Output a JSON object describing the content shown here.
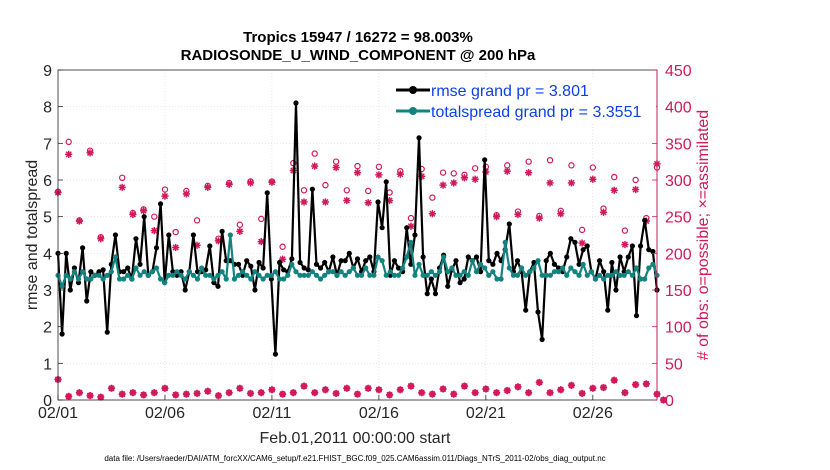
{
  "chart_data": {
    "type": "line",
    "title": "Tropics 15947 / 16272 = 98.003%",
    "subtitle": "RADIOSONDE_U_WIND_COMPONENT @ 200 hPa",
    "xlabel": "Feb.01,2011 00:00:00 start",
    "ylabel": "rmse and totalspread",
    "ylabel_right": "# of obs: o=possible; ×=assimilated",
    "footnote": "data file: /Users/raeder/DAI/ATM_forcXX/CAM6_setup/f.e21.FHIST_BGC.f09_025.CAM6assim.011/Diags_NTrS_2011-02/obs_diag_output.nc",
    "x_ticks": [
      "02/01",
      "02/06",
      "02/11",
      "02/16",
      "02/21",
      "02/26"
    ],
    "x_tick_days": [
      0,
      5,
      10,
      15,
      20,
      25
    ],
    "xlim": [
      0,
      28
    ],
    "ylim": [
      0,
      9
    ],
    "y_ticks": [
      0,
      1,
      2,
      3,
      4,
      5,
      6,
      7,
      8,
      9
    ],
    "ylim_right": [
      0,
      450
    ],
    "y_ticks_right": [
      0,
      50,
      100,
      150,
      200,
      250,
      300,
      350,
      400,
      450
    ],
    "colors": {
      "rmse": "#000000",
      "spread": "#13837f",
      "obs": "#d1195a",
      "legend_text": "#0b3fe8"
    },
    "legend": [
      "rmse grand pr = 3.801",
      "totalspread grand pr = 3.3551"
    ],
    "series": [
      {
        "name": "rmse grand pr = 3.801",
        "values": [
          4.0,
          1.8,
          4.0,
          3.0,
          3.6,
          3.2,
          4.15,
          2.7,
          3.5,
          3.4,
          3.5,
          3.55,
          1.85,
          3.7,
          4.5,
          3.5,
          3.5,
          3.6,
          3.3,
          4.4,
          3.7,
          5.0,
          3.4,
          3.5,
          4.15,
          5.35,
          3.2,
          4.5,
          3.5,
          3.4,
          3.5,
          3.0,
          3.5,
          4.5,
          3.5,
          3.5,
          3.55,
          4.2,
          3.2,
          3.1,
          4.6,
          3.8,
          3.8,
          3.7,
          3.7,
          3.4,
          3.8,
          3.65,
          3.0,
          3.75,
          3.6,
          5.65,
          3.3,
          1.25,
          3.75,
          3.55,
          3.5,
          3.85,
          8.1,
          3.75,
          3.6,
          3.55,
          5.75,
          3.7,
          3.6,
          3.75,
          3.5,
          3.9,
          3.4,
          3.8,
          3.8,
          4.0,
          3.6,
          3.85,
          3.5,
          3.8,
          3.9,
          3.5,
          5.4,
          4.7,
          5.95,
          3.4,
          3.8,
          3.6,
          3.5,
          4.7,
          3.7,
          4.5,
          7.15,
          3.9,
          2.9,
          3.3,
          2.9,
          3.6,
          3.95,
          3.1,
          3.55,
          3.8,
          3.2,
          3.3,
          3.9,
          3.8,
          3.9,
          3.5,
          6.55,
          3.8,
          3.7,
          4.0,
          3.8,
          4.1,
          4.8,
          3.5,
          3.8,
          3.5,
          2.45,
          3.5,
          3.75,
          2.4,
          1.65,
          3.8,
          4.0,
          3.7,
          3.6,
          3.5,
          3.9,
          4.4,
          4.3,
          3.7,
          4.1,
          4.2,
          3.5,
          3.3,
          3.8,
          3.5,
          2.45,
          3.75,
          3.0,
          3.9,
          3.5,
          3.9,
          4.2,
          2.3,
          4.2,
          4.9,
          4.1,
          4.05,
          3.0
        ]
      },
      {
        "name": "totalspread grand pr = 3.3551",
        "values": [
          3.4,
          3.1,
          3.4,
          3.3,
          3.5,
          3.3,
          3.5,
          3.3,
          3.3,
          3.4,
          3.4,
          3.3,
          3.4,
          3.5,
          3.9,
          3.3,
          3.3,
          3.4,
          3.3,
          3.6,
          3.4,
          3.5,
          3.4,
          3.5,
          3.6,
          3.3,
          3.2,
          3.4,
          3.4,
          3.5,
          3.4,
          3.3,
          3.5,
          3.4,
          3.3,
          3.6,
          3.4,
          3.4,
          3.3,
          3.4,
          3.5,
          3.3,
          4.5,
          3.3,
          3.4,
          3.5,
          3.4,
          3.3,
          3.5,
          3.4,
          3.3,
          3.4,
          3.4,
          3.5,
          3.3,
          3.3,
          3.4,
          3.7,
          3.5,
          3.4,
          3.4,
          3.4,
          3.5,
          3.4,
          3.3,
          3.4,
          3.5,
          3.5,
          3.4,
          3.5,
          3.4,
          3.5,
          3.6,
          3.4,
          3.4,
          3.6,
          3.4,
          3.4,
          3.9,
          3.8,
          3.4,
          3.5,
          3.4,
          3.4,
          3.6,
          3.9,
          4.3,
          3.4,
          3.7,
          3.4,
          3.4,
          3.5,
          3.4,
          3.5,
          3.9,
          3.5,
          3.6,
          3.4,
          3.4,
          3.5,
          3.4,
          3.8,
          3.5,
          3.7,
          3.6,
          3.4,
          3.5,
          3.3,
          3.3,
          4.3,
          3.6,
          3.4,
          3.4,
          3.6,
          3.4,
          3.5,
          3.6,
          3.8,
          3.4,
          3.4,
          3.4,
          3.5,
          3.5,
          3.6,
          3.4,
          3.6,
          3.5,
          3.4,
          3.7,
          3.4,
          3.5,
          3.3,
          3.4,
          3.3,
          3.4,
          3.4,
          3.5,
          3.4,
          3.4,
          3.5,
          3.4,
          3.6,
          3.3,
          3.3,
          3.6,
          3.7,
          3.4
        ]
      }
    ],
    "obs_possible": [
      {
        "x": 0.0,
        "v": 284
      },
      {
        "x": 0.5,
        "v": 352
      },
      {
        "x": 1.0,
        "v": 245
      },
      {
        "x": 1.5,
        "v": 340
      },
      {
        "x": 2.0,
        "v": 222
      },
      {
        "x": 3.0,
        "v": 303
      },
      {
        "x": 3.5,
        "v": 255
      },
      {
        "x": 4.0,
        "v": 260
      },
      {
        "x": 4.5,
        "v": 250
      },
      {
        "x": 5.0,
        "v": 287
      },
      {
        "x": 5.5,
        "v": 229
      },
      {
        "x": 6.0,
        "v": 285
      },
      {
        "x": 6.5,
        "v": 245
      },
      {
        "x": 7.0,
        "v": 292
      },
      {
        "x": 7.5,
        "v": 220
      },
      {
        "x": 8.0,
        "v": 296
      },
      {
        "x": 8.5,
        "v": 239
      },
      {
        "x": 9.0,
        "v": 298
      },
      {
        "x": 9.5,
        "v": 247
      },
      {
        "x": 10.0,
        "v": 298
      },
      {
        "x": 10.5,
        "v": 209
      },
      {
        "x": 11.0,
        "v": 323
      },
      {
        "x": 11.5,
        "v": 286
      },
      {
        "x": 12.0,
        "v": 336
      },
      {
        "x": 12.5,
        "v": 293
      },
      {
        "x": 13.0,
        "v": 325
      },
      {
        "x": 13.5,
        "v": 286
      },
      {
        "x": 14.0,
        "v": 319
      },
      {
        "x": 14.5,
        "v": 285
      },
      {
        "x": 15.0,
        "v": 318
      },
      {
        "x": 15.5,
        "v": 283
      },
      {
        "x": 16.0,
        "v": 312
      },
      {
        "x": 16.5,
        "v": 248
      },
      {
        "x": 17.0,
        "v": 315
      },
      {
        "x": 17.5,
        "v": 276
      },
      {
        "x": 18.0,
        "v": 310
      },
      {
        "x": 18.5,
        "v": 309
      },
      {
        "x": 19.0,
        "v": 307
      },
      {
        "x": 19.5,
        "v": 316
      },
      {
        "x": 20.0,
        "v": 318
      },
      {
        "x": 20.5,
        "v": 252
      },
      {
        "x": 21.0,
        "v": 320
      },
      {
        "x": 21.5,
        "v": 257
      },
      {
        "x": 22.0,
        "v": 325
      },
      {
        "x": 22.5,
        "v": 251
      },
      {
        "x": 23.0,
        "v": 327
      },
      {
        "x": 23.5,
        "v": 258
      },
      {
        "x": 24.0,
        "v": 320
      },
      {
        "x": 24.5,
        "v": 232
      },
      {
        "x": 25.0,
        "v": 317
      },
      {
        "x": 25.5,
        "v": 261
      },
      {
        "x": 26.0,
        "v": 304
      },
      {
        "x": 26.5,
        "v": 231
      },
      {
        "x": 27.0,
        "v": 300
      },
      {
        "x": 27.5,
        "v": 248
      },
      {
        "x": 28.0,
        "v": 317
      }
    ],
    "obs_assimilated": [
      {
        "x": 0.0,
        "v": 283
      },
      {
        "x": 0.5,
        "v": 335
      },
      {
        "x": 1.0,
        "v": 244
      },
      {
        "x": 1.5,
        "v": 337
      },
      {
        "x": 2.0,
        "v": 220
      },
      {
        "x": 3.0,
        "v": 290
      },
      {
        "x": 3.5,
        "v": 253
      },
      {
        "x": 4.0,
        "v": 258
      },
      {
        "x": 4.5,
        "v": 231
      },
      {
        "x": 5.0,
        "v": 278
      },
      {
        "x": 5.5,
        "v": 208
      },
      {
        "x": 6.0,
        "v": 281
      },
      {
        "x": 6.5,
        "v": 211
      },
      {
        "x": 7.0,
        "v": 290
      },
      {
        "x": 7.5,
        "v": 217
      },
      {
        "x": 8.0,
        "v": 294
      },
      {
        "x": 8.5,
        "v": 230
      },
      {
        "x": 9.0,
        "v": 296
      },
      {
        "x": 9.5,
        "v": 216
      },
      {
        "x": 10.0,
        "v": 297
      },
      {
        "x": 10.5,
        "v": 192
      },
      {
        "x": 11.0,
        "v": 313
      },
      {
        "x": 11.5,
        "v": 270
      },
      {
        "x": 12.0,
        "v": 319
      },
      {
        "x": 12.5,
        "v": 270
      },
      {
        "x": 13.0,
        "v": 317
      },
      {
        "x": 13.5,
        "v": 272
      },
      {
        "x": 14.0,
        "v": 310
      },
      {
        "x": 14.5,
        "v": 269
      },
      {
        "x": 15.0,
        "v": 307
      },
      {
        "x": 15.5,
        "v": 272
      },
      {
        "x": 16.0,
        "v": 308
      },
      {
        "x": 16.5,
        "v": 237
      },
      {
        "x": 17.0,
        "v": 305
      },
      {
        "x": 17.5,
        "v": 254
      },
      {
        "x": 18.0,
        "v": 293
      },
      {
        "x": 18.5,
        "v": 296
      },
      {
        "x": 19.0,
        "v": 303
      },
      {
        "x": 19.5,
        "v": 301
      },
      {
        "x": 20.0,
        "v": 311
      },
      {
        "x": 20.5,
        "v": 250
      },
      {
        "x": 21.0,
        "v": 312
      },
      {
        "x": 21.5,
        "v": 253
      },
      {
        "x": 22.0,
        "v": 310
      },
      {
        "x": 22.5,
        "v": 248
      },
      {
        "x": 23.0,
        "v": 296
      },
      {
        "x": 23.5,
        "v": 254
      },
      {
        "x": 24.0,
        "v": 296
      },
      {
        "x": 24.5,
        "v": 214
      },
      {
        "x": 25.0,
        "v": 301
      },
      {
        "x": 25.5,
        "v": 256
      },
      {
        "x": 26.0,
        "v": 286
      },
      {
        "x": 26.5,
        "v": 212
      },
      {
        "x": 27.0,
        "v": 287
      },
      {
        "x": 27.5,
        "v": 244
      },
      {
        "x": 28.0,
        "v": 322
      }
    ],
    "obs_low_possible": [
      {
        "x": 0.0,
        "v": 28
      },
      {
        "x": 0.5,
        "v": 5
      },
      {
        "x": 1.0,
        "v": 10
      },
      {
        "x": 1.5,
        "v": 6
      },
      {
        "x": 2.0,
        "v": 4
      },
      {
        "x": 2.5,
        "v": 16
      },
      {
        "x": 3.0,
        "v": 8
      },
      {
        "x": 3.5,
        "v": 10
      },
      {
        "x": 4.0,
        "v": 7
      },
      {
        "x": 4.5,
        "v": 10
      },
      {
        "x": 5.0,
        "v": 16
      },
      {
        "x": 5.5,
        "v": 7
      },
      {
        "x": 6.0,
        "v": 8
      },
      {
        "x": 6.5,
        "v": 9
      },
      {
        "x": 7.0,
        "v": 12
      },
      {
        "x": 7.5,
        "v": 6
      },
      {
        "x": 8.0,
        "v": 10
      },
      {
        "x": 8.5,
        "v": 16
      },
      {
        "x": 9.0,
        "v": 9
      },
      {
        "x": 9.5,
        "v": 10
      },
      {
        "x": 10.0,
        "v": 14
      },
      {
        "x": 10.5,
        "v": 8
      },
      {
        "x": 11.0,
        "v": 10
      },
      {
        "x": 11.5,
        "v": 19
      },
      {
        "x": 12.0,
        "v": 10
      },
      {
        "x": 12.5,
        "v": 14
      },
      {
        "x": 13.0,
        "v": 9
      },
      {
        "x": 13.5,
        "v": 16
      },
      {
        "x": 14.0,
        "v": 8
      },
      {
        "x": 14.5,
        "v": 16
      },
      {
        "x": 15.0,
        "v": 14
      },
      {
        "x": 15.5,
        "v": 7
      },
      {
        "x": 16.0,
        "v": 14
      },
      {
        "x": 16.5,
        "v": 19
      },
      {
        "x": 17.0,
        "v": 10
      },
      {
        "x": 17.5,
        "v": 8
      },
      {
        "x": 18.0,
        "v": 15
      },
      {
        "x": 18.5,
        "v": 8
      },
      {
        "x": 19.0,
        "v": 19
      },
      {
        "x": 19.5,
        "v": 10
      },
      {
        "x": 20.0,
        "v": 15
      },
      {
        "x": 20.5,
        "v": 10
      },
      {
        "x": 21.0,
        "v": 13
      },
      {
        "x": 21.5,
        "v": 18
      },
      {
        "x": 22.0,
        "v": 10
      },
      {
        "x": 22.5,
        "v": 24
      },
      {
        "x": 23.0,
        "v": 10
      },
      {
        "x": 23.5,
        "v": 14
      },
      {
        "x": 24.0,
        "v": 20
      },
      {
        "x": 24.5,
        "v": 9
      },
      {
        "x": 25.0,
        "v": 16
      },
      {
        "x": 25.5,
        "v": 17
      },
      {
        "x": 26.0,
        "v": 27
      },
      {
        "x": 26.5,
        "v": 10
      },
      {
        "x": 27.0,
        "v": 21
      },
      {
        "x": 27.5,
        "v": 22
      },
      {
        "x": 28.0,
        "v": 8
      },
      {
        "x": 28.3,
        "v": 0
      }
    ]
  }
}
